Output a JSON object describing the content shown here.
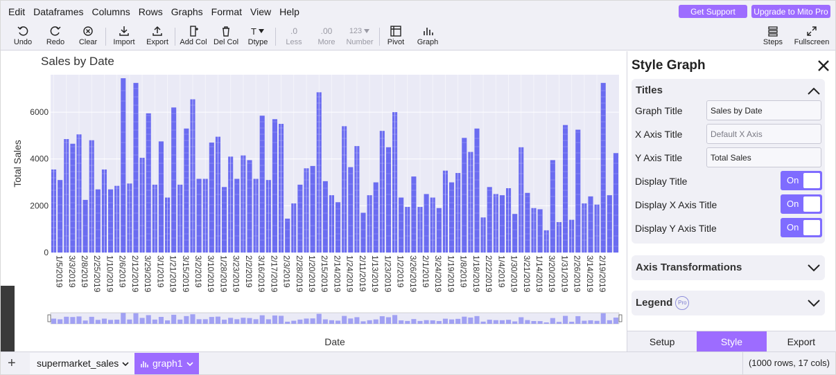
{
  "menu": [
    "Edit",
    "Dataframes",
    "Columns",
    "Rows",
    "Graphs",
    "Format",
    "View",
    "Help"
  ],
  "top_buttons": {
    "support": "Get Support",
    "upgrade": "Upgrade to Mito Pro"
  },
  "toolbar": {
    "undo": "Undo",
    "redo": "Redo",
    "clear": "Clear",
    "import": "Import",
    "export": "Export",
    "add_col": "Add Col",
    "del_col": "Del Col",
    "dtype": "Dtype",
    "less": "Less",
    "less_glyph": ".0",
    "more": "More",
    "more_glyph": ".00",
    "number": "Number",
    "number_glyph": "123",
    "pivot": "Pivot",
    "graph": "Graph",
    "steps": "Steps",
    "fullscreen": "Fullscreen",
    "dtype_glyph": "T"
  },
  "chart_data": {
    "type": "bar",
    "title": "Sales by Date",
    "xlabel": "Date",
    "ylabel": "Total Sales",
    "ylim": [
      0,
      7600
    ],
    "yticks": [
      0,
      2000,
      4000,
      6000
    ],
    "tick_labels": [
      "1/5/2019",
      "3/3/2019",
      "2/8/2019",
      "2/25/2019",
      "1/10/2019",
      "2/6/2019",
      "2/12/2019",
      "3/29/2019",
      "3/1/2019",
      "1/21/2019",
      "3/15/2019",
      "3/2/2019",
      "3/10/2019",
      "1/28/2019",
      "3/23/2019",
      "2/2/2019",
      "3/16/2019",
      "2/17/2019",
      "2/3/2019",
      "2/28/2019",
      "1/20/2019",
      "2/15/2019",
      "2/14/2019",
      "1/24/2019",
      "2/11/2019",
      "1/13/2019",
      "1/23/2019",
      "1/2/2019",
      "3/26/2019",
      "2/1/2019",
      "3/24/2019",
      "1/19/2019",
      "1/8/2019",
      "1/18/2019",
      "2/22/2019",
      "1/4/2019",
      "1/30/2019",
      "3/21/2019",
      "1/14/2019",
      "3/20/2019",
      "1/31/2019",
      "2/26/2019",
      "3/14/2019",
      "2/19/2019"
    ],
    "values": [
      3550,
      3100,
      4850,
      4650,
      5050,
      2250,
      4800,
      2700,
      3550,
      2700,
      2850,
      7450,
      2950,
      7250,
      4050,
      5950,
      2900,
      4750,
      2350,
      6200,
      2900,
      5300,
      6550,
      3150,
      3150,
      4700,
      4950,
      2800,
      4100,
      3150,
      4150,
      3950,
      3150,
      5850,
      3100,
      5700,
      5500,
      1450,
      2100,
      2900,
      3600,
      3700,
      6850,
      3050,
      2450,
      2150,
      5400,
      3650,
      4550,
      1700,
      2450,
      3000,
      5200,
      4500,
      6000,
      2350,
      1950,
      3250,
      1950,
      2500,
      2350,
      1900,
      3500,
      3000,
      3400,
      4900,
      4300,
      5300,
      1500,
      2800,
      2500,
      2450,
      2750,
      1650,
      4500,
      2550,
      1900,
      1850,
      950,
      3950,
      1300,
      5450,
      1400,
      5250,
      2100,
      2400,
      2050,
      7250,
      2450,
      4250
    ],
    "grid": true,
    "legend": "none",
    "bar_color": "#6b6cf0",
    "plot_bg": "#eaeaf6"
  },
  "panel": {
    "title": "Style Graph",
    "titles_section": "Titles",
    "graph_title_label": "Graph Title",
    "graph_title_value": "Sales by Date",
    "x_axis_label": "X Axis Title",
    "x_axis_placeholder": "Default X Axis",
    "y_axis_label": "Y Axis Title",
    "y_axis_value": "Total Sales",
    "display_title_label": "Display Title",
    "display_x_label": "Display X Axis Title",
    "display_y_label": "Display Y Axis Title",
    "toggle_on": "On",
    "axis_transform": "Axis Transformations",
    "legend": "Legend",
    "pro_badge": "Pro",
    "tabs": [
      "Setup",
      "Style",
      "Export"
    ]
  },
  "bottom": {
    "sheet": "supermarket_sales",
    "graph": "graph1",
    "row_count": "(1000 rows, 17 cols)",
    "add": "+"
  }
}
